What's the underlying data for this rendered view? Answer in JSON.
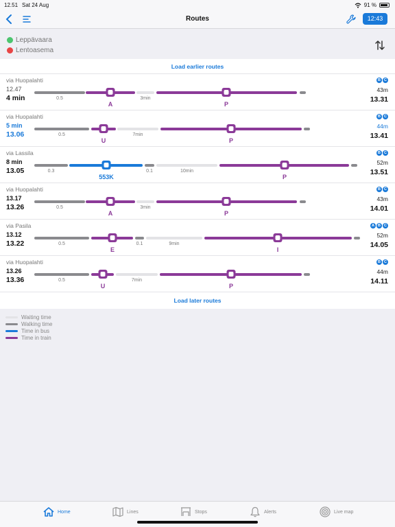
{
  "status": {
    "time": "12.51",
    "date": "Sat 24 Aug",
    "battery": "91 %"
  },
  "nav": {
    "title": "Routes",
    "time_button": "12:43"
  },
  "trip": {
    "origin": "Leppävaara",
    "destination": "Lentoasema"
  },
  "load_earlier": "Load earlier routes",
  "load_later": "Load later routes",
  "routes": [
    {
      "via": "via Huopalahti",
      "dep": "12.47",
      "dur": "4 min",
      "walk": "43m",
      "arr": "13.31",
      "badges": [
        "B",
        "C"
      ],
      "legs": [
        {
          "type": "walking",
          "label": "0.5"
        },
        {
          "type": "train",
          "code": "A"
        },
        {
          "type": "waiting",
          "label": "3min"
        },
        {
          "type": "train",
          "code": "P"
        },
        {
          "type": "walking"
        }
      ]
    },
    {
      "via": "via Huopalahti",
      "dep": "5 min",
      "dur": "13.06",
      "walk": "44m",
      "arr": "13.41",
      "badges": [
        "B",
        "C"
      ],
      "legs": [
        {
          "type": "walking",
          "label": "0.5"
        },
        {
          "type": "train",
          "code": "U"
        },
        {
          "type": "waiting",
          "label": "7min"
        },
        {
          "type": "train",
          "code": "P"
        },
        {
          "type": "walking"
        }
      ]
    },
    {
      "via": "via Lassila",
      "dep": "8 min",
      "dur": "13.05",
      "walk": "52m",
      "arr": "13.51",
      "badges": [
        "B",
        "C"
      ],
      "legs": [
        {
          "type": "walking",
          "label": "0.3"
        },
        {
          "type": "bus",
          "code": "553K"
        },
        {
          "type": "walking",
          "label": "0.1"
        },
        {
          "type": "waiting",
          "label": "10min"
        },
        {
          "type": "train",
          "code": "P"
        },
        {
          "type": "walking"
        }
      ]
    },
    {
      "via": "via Huopalahti",
      "dep": "13.17",
      "dur": "13.26",
      "walk": "43m",
      "arr": "14.01",
      "badges": [
        "B",
        "C"
      ],
      "legs": [
        {
          "type": "walking",
          "label": "0.5"
        },
        {
          "type": "train",
          "code": "A"
        },
        {
          "type": "waiting",
          "label": "3min"
        },
        {
          "type": "train",
          "code": "P"
        },
        {
          "type": "walking"
        }
      ]
    },
    {
      "via": "via Pasila",
      "dep": "13.12",
      "dur": "13.22",
      "walk": "52m",
      "arr": "14.05",
      "badges": [
        "A",
        "B",
        "C"
      ],
      "legs": [
        {
          "type": "walking",
          "label": "0.5"
        },
        {
          "type": "train",
          "code": "E"
        },
        {
          "type": "walking",
          "label": "0.1"
        },
        {
          "type": "waiting",
          "label": "9min"
        },
        {
          "type": "train",
          "code": "I"
        },
        {
          "type": "walking"
        }
      ]
    },
    {
      "via": "via Huopalahti",
      "dep": "13.26",
      "dur": "13.36",
      "walk": "44m",
      "arr": "14.11",
      "badges": [
        "B",
        "C"
      ],
      "legs": [
        {
          "type": "walking",
          "label": "0.5"
        },
        {
          "type": "train",
          "code": "U"
        },
        {
          "type": "waiting",
          "label": "7min"
        },
        {
          "type": "train",
          "code": "P"
        },
        {
          "type": "walking"
        }
      ]
    }
  ],
  "legend": [
    {
      "label": "Waiting time",
      "color": "#e3e3e6"
    },
    {
      "label": "Walking time",
      "color": "#8a8a8e"
    },
    {
      "label": "Time in bus",
      "color": "#1a7ad9"
    },
    {
      "label": "Time in train",
      "color": "#8b3a98"
    }
  ],
  "tabs": [
    {
      "label": "Home",
      "icon": "home-icon",
      "active": true
    },
    {
      "label": "Lines",
      "icon": "map-icon",
      "active": false
    },
    {
      "label": "Stops",
      "icon": "bus-stop-icon",
      "active": false
    },
    {
      "label": "Alerts",
      "icon": "bell-icon",
      "active": false
    },
    {
      "label": "Live map",
      "icon": "radar-icon",
      "active": false
    }
  ]
}
